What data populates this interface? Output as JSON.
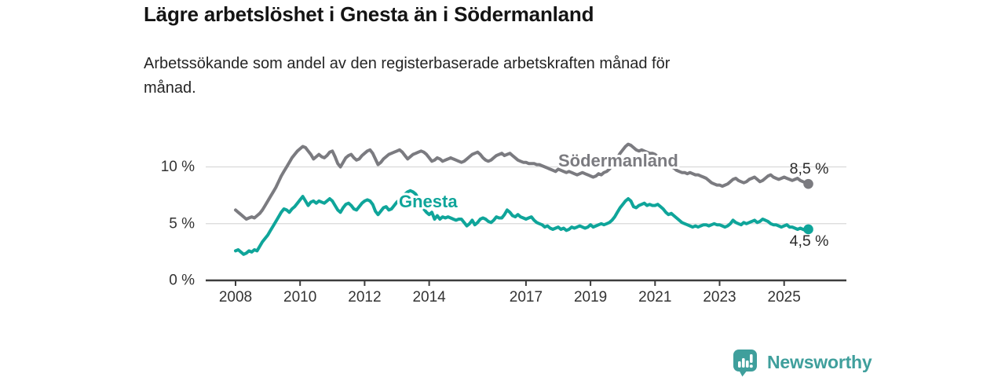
{
  "header": {
    "title": "Lägre arbetslöshet i Gnesta än i Södermanland",
    "subtitle_line1": "Arbetssökande som andel av den registerbaserade arbetskraften månad för",
    "subtitle_line2": "månad."
  },
  "footer": {
    "brand_name": "Newsworthy",
    "brand_color": "#3f9f9c",
    "logo_icon": "bar-chart-speech-bubble-icon"
  },
  "chart_data": {
    "type": "line",
    "title": "Lägre arbetslöshet i Gnesta än i Södermanland",
    "xlabel": "",
    "ylabel": "",
    "unit": "%",
    "grid": "horizontal",
    "legend": "inline-series-labels",
    "xlim_years": [
      2007.85,
      2026.4
    ],
    "ylim": [
      0,
      12.5
    ],
    "x_axis": {
      "tick_years": [
        2008,
        2010,
        2012,
        2014,
        2017,
        2019,
        2021,
        2023,
        2025
      ],
      "tick_labels": [
        "2008",
        "2010",
        "2012",
        "2014",
        "2017",
        "2019",
        "2021",
        "2023",
        "2025"
      ]
    },
    "y_axis": {
      "tick_values": [
        0,
        5,
        10
      ],
      "tick_labels": [
        "0 %",
        "5 %",
        "10 %"
      ]
    },
    "start_year": 2008,
    "points_per_year": 12,
    "series": [
      {
        "name": "Södermanland",
        "color": "#7b7b80",
        "end_label": "8,5 %",
        "last_value": 8.5,
        "values": [
          6.2,
          6.0,
          5.8,
          5.6,
          5.4,
          5.5,
          5.6,
          5.5,
          5.7,
          5.9,
          6.2,
          6.6,
          7.0,
          7.4,
          7.8,
          8.2,
          8.7,
          9.2,
          9.6,
          10.0,
          10.4,
          10.8,
          11.1,
          11.4,
          11.6,
          11.8,
          11.7,
          11.4,
          11.1,
          10.7,
          10.9,
          11.1,
          10.9,
          10.8,
          11.0,
          11.3,
          11.4,
          10.9,
          10.3,
          10.0,
          10.4,
          10.8,
          11.0,
          11.1,
          10.8,
          10.6,
          10.7,
          11.0,
          11.2,
          11.4,
          11.5,
          11.2,
          10.7,
          10.2,
          10.4,
          10.7,
          10.9,
          11.1,
          11.2,
          11.3,
          11.4,
          11.5,
          11.3,
          11.0,
          10.7,
          10.9,
          11.1,
          11.2,
          11.3,
          11.4,
          11.3,
          11.1,
          10.8,
          10.5,
          10.6,
          10.8,
          10.7,
          10.5,
          10.6,
          10.7,
          10.8,
          10.7,
          10.6,
          10.5,
          10.4,
          10.5,
          10.7,
          10.9,
          11.1,
          11.2,
          11.3,
          11.1,
          10.8,
          10.6,
          10.5,
          10.6,
          10.8,
          11.0,
          11.1,
          11.2,
          11.0,
          11.1,
          11.2,
          11.0,
          10.8,
          10.6,
          10.5,
          10.4,
          10.4,
          10.3,
          10.3,
          10.3,
          10.2,
          10.2,
          10.1,
          10.0,
          9.9,
          9.8,
          9.7,
          9.6,
          9.8,
          9.7,
          9.6,
          9.5,
          9.6,
          9.5,
          9.4,
          9.3,
          9.4,
          9.5,
          9.4,
          9.3,
          9.2,
          9.1,
          9.2,
          9.4,
          9.3,
          9.5,
          9.6,
          9.8,
          10.1,
          10.4,
          10.8,
          11.2,
          11.5,
          11.8,
          12.0,
          11.9,
          11.7,
          11.5,
          11.4,
          11.5,
          11.4,
          11.3,
          11.2,
          11.2,
          11.1,
          10.9,
          10.7,
          10.5,
          10.3,
          10.1,
          10.0,
          9.9,
          9.7,
          9.6,
          9.5,
          9.5,
          9.4,
          9.5,
          9.4,
          9.3,
          9.3,
          9.2,
          9.1,
          9.0,
          8.8,
          8.6,
          8.5,
          8.4,
          8.4,
          8.3,
          8.4,
          8.5,
          8.7,
          8.9,
          9.0,
          8.8,
          8.7,
          8.6,
          8.7,
          8.9,
          9.0,
          9.1,
          8.9,
          8.7,
          8.8,
          9.0,
          9.2,
          9.3,
          9.1,
          9.0,
          8.9,
          9.0,
          9.1,
          9.0,
          8.9,
          8.8,
          8.9,
          9.0,
          8.8,
          8.7,
          8.6,
          8.5
        ]
      },
      {
        "name": "Gnesta",
        "color": "#0fa59a",
        "end_label": "4,5 %",
        "last_value": 4.5,
        "values": [
          2.6,
          2.7,
          2.5,
          2.3,
          2.4,
          2.6,
          2.5,
          2.7,
          2.6,
          3.0,
          3.4,
          3.7,
          4.0,
          4.4,
          4.8,
          5.2,
          5.6,
          6.0,
          6.3,
          6.2,
          6.0,
          6.3,
          6.5,
          6.8,
          7.1,
          7.4,
          7.0,
          6.6,
          6.9,
          7.0,
          6.8,
          7.0,
          6.9,
          6.8,
          7.0,
          7.2,
          7.0,
          6.6,
          6.2,
          6.0,
          6.4,
          6.7,
          6.8,
          6.6,
          6.3,
          6.2,
          6.5,
          6.8,
          7.0,
          7.1,
          7.0,
          6.7,
          6.1,
          5.8,
          6.1,
          6.4,
          6.5,
          6.2,
          6.3,
          6.6,
          6.9,
          7.1,
          7.3,
          7.6,
          7.8,
          7.9,
          7.8,
          7.6,
          7.2,
          6.8,
          6.3,
          6.0,
          5.8,
          6.0,
          5.4,
          5.7,
          5.4,
          5.6,
          5.5,
          5.6,
          5.5,
          5.4,
          5.3,
          5.4,
          5.4,
          5.1,
          4.8,
          5.0,
          5.3,
          4.9,
          5.1,
          5.4,
          5.5,
          5.4,
          5.2,
          5.1,
          5.3,
          5.6,
          5.5,
          5.5,
          5.8,
          6.2,
          6.0,
          5.7,
          5.6,
          5.8,
          5.6,
          5.5,
          5.4,
          5.5,
          5.6,
          5.3,
          5.1,
          5.0,
          4.9,
          4.7,
          4.8,
          4.6,
          4.5,
          4.6,
          4.7,
          4.5,
          4.6,
          4.4,
          4.5,
          4.7,
          4.6,
          4.7,
          4.8,
          4.7,
          4.6,
          4.7,
          4.9,
          4.7,
          4.8,
          4.9,
          5.0,
          4.9,
          5.0,
          5.1,
          5.3,
          5.6,
          6.0,
          6.4,
          6.7,
          7.0,
          7.2,
          7.0,
          6.5,
          6.4,
          6.6,
          6.7,
          6.8,
          6.6,
          6.7,
          6.6,
          6.6,
          6.7,
          6.5,
          6.3,
          6.0,
          5.8,
          5.9,
          5.7,
          5.5,
          5.3,
          5.1,
          5.0,
          4.9,
          4.8,
          4.7,
          4.8,
          4.7,
          4.8,
          4.9,
          4.9,
          4.8,
          4.9,
          5.0,
          4.9,
          4.9,
          4.8,
          4.7,
          4.8,
          5.0,
          5.3,
          5.1,
          5.0,
          4.9,
          5.1,
          5.0,
          5.1,
          5.2,
          5.3,
          5.1,
          5.2,
          5.4,
          5.3,
          5.2,
          5.0,
          4.9,
          4.9,
          4.8,
          4.7,
          4.8,
          4.9,
          4.7,
          4.7,
          4.6,
          4.5,
          4.6,
          4.5,
          4.4,
          4.5
        ]
      }
    ],
    "colors": {
      "grid": "#d9d9d9",
      "axis": "#3d3d3d",
      "tick_text": "#333333",
      "data_label_text": "#2b2b2b"
    }
  }
}
